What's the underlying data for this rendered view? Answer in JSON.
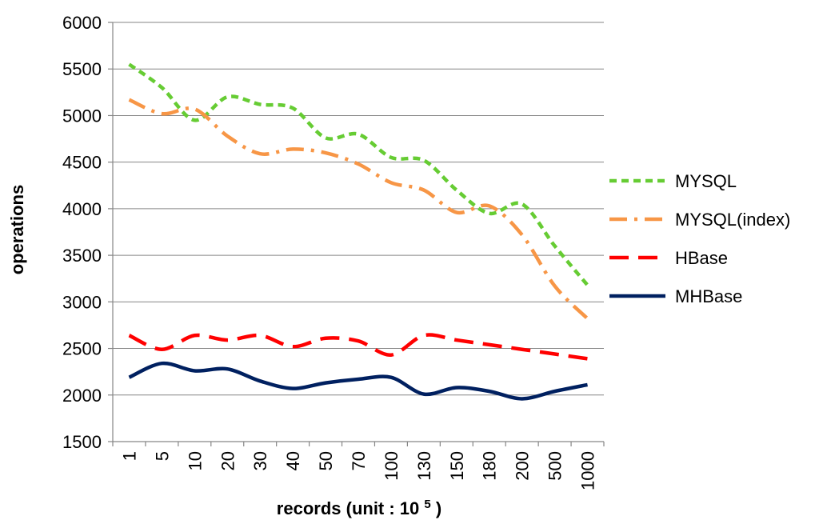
{
  "chart_data": {
    "type": "line",
    "title": "",
    "xlabel_main": "records (unit : 10",
    "xlabel_sup": "5",
    "xlabel_close": ")",
    "ylabel": "operations",
    "ylim": [
      1500,
      6000
    ],
    "yticks": [
      "1500",
      "2000",
      "2500",
      "3000",
      "3500",
      "4000",
      "4500",
      "5000",
      "5500",
      "6000"
    ],
    "categories": [
      "1",
      "5",
      "10",
      "20",
      "30",
      "40",
      "50",
      "70",
      "100",
      "130",
      "150",
      "180",
      "200",
      "500",
      "1000"
    ],
    "grid": true,
    "legend_position": "right",
    "series": [
      {
        "name": "MYSQL",
        "color": "#66cc33",
        "style": "short-dash",
        "values": [
          5550,
          5300,
          4950,
          5200,
          5120,
          5080,
          4760,
          4800,
          4550,
          4520,
          4200,
          3950,
          4050,
          3600,
          3180
        ]
      },
      {
        "name": "MYSQL(index)",
        "color": "#f79646",
        "style": "dash-dot",
        "values": [
          5170,
          5020,
          5070,
          4780,
          4590,
          4640,
          4600,
          4480,
          4280,
          4200,
          3960,
          4030,
          3720,
          3170,
          2820
        ]
      },
      {
        "name": "HBase",
        "color": "#ff0000",
        "style": "long-dash",
        "values": [
          2640,
          2490,
          2640,
          2590,
          2640,
          2520,
          2610,
          2580,
          2430,
          2640,
          2590,
          2540,
          2490,
          2440,
          2390
        ]
      },
      {
        "name": "MHBase",
        "color": "#002060",
        "style": "solid",
        "values": [
          2190,
          2340,
          2260,
          2280,
          2150,
          2070,
          2130,
          2170,
          2190,
          2010,
          2080,
          2040,
          1960,
          2040,
          2110
        ]
      }
    ]
  }
}
